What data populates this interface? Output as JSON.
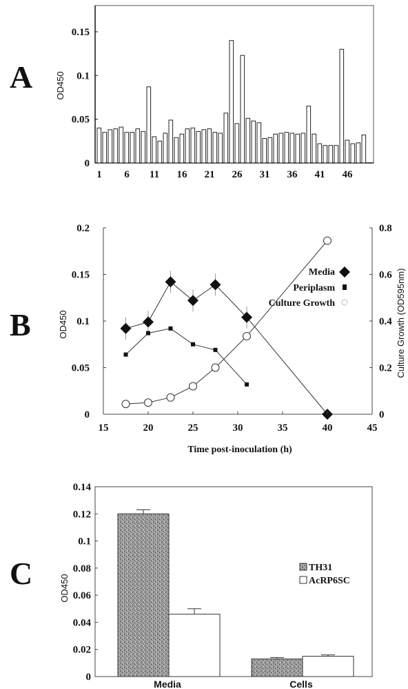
{
  "panels": {
    "A": "A",
    "B": "B",
    "C": "C"
  },
  "chart_data": [
    {
      "panel": "A",
      "type": "bar",
      "ylabel": "OD450",
      "xlabel": "",
      "ylim": [
        0,
        0.18
      ],
      "yticks": [
        "0",
        "0.05",
        "0.1",
        "0.15"
      ],
      "ytick_values": [
        0,
        0.05,
        0.1,
        0.15
      ],
      "xticks": [
        "1",
        "6",
        "11",
        "16",
        "21",
        "26",
        "31",
        "36",
        "41",
        "46"
      ],
      "categories": [
        1,
        2,
        3,
        4,
        5,
        6,
        7,
        8,
        9,
        10,
        11,
        12,
        13,
        14,
        15,
        16,
        17,
        18,
        19,
        20,
        21,
        22,
        23,
        24,
        25,
        26,
        27,
        28,
        29,
        30,
        31,
        32,
        33,
        34,
        35,
        36,
        37,
        38,
        39,
        40,
        41,
        42,
        43,
        44,
        45,
        46,
        47,
        48,
        49,
        50
      ],
      "values": [
        0.04,
        0.035,
        0.038,
        0.039,
        0.041,
        0.035,
        0.035,
        0.039,
        0.036,
        0.087,
        0.03,
        0.025,
        0.034,
        0.049,
        0.029,
        0.033,
        0.039,
        0.04,
        0.036,
        0.038,
        0.039,
        0.035,
        0.034,
        0.057,
        0.14,
        0.045,
        0.123,
        0.051,
        0.048,
        0.046,
        0.028,
        0.029,
        0.033,
        0.034,
        0.035,
        0.034,
        0.033,
        0.034,
        0.065,
        0.033,
        0.022,
        0.02,
        0.02,
        0.02,
        0.13,
        0.026,
        0.022,
        0.023,
        0.032,
        0.0
      ]
    },
    {
      "panel": "B",
      "type": "line",
      "xlabel": "Time post-inoculation (h)",
      "ylabel": "OD450",
      "y2label": "Culture Growth (OD595nm)",
      "xlim": [
        15,
        45
      ],
      "ylim": [
        0,
        0.2
      ],
      "y2lim": [
        0,
        0.8
      ],
      "xticks": [
        "15",
        "20",
        "25",
        "30",
        "35",
        "40",
        "45"
      ],
      "xtick_values": [
        15,
        20,
        25,
        30,
        35,
        40,
        45
      ],
      "yticks": [
        "0",
        "0.05",
        "0.1",
        "0.15",
        "0.2"
      ],
      "ytick_values": [
        0,
        0.05,
        0.1,
        0.15,
        0.2
      ],
      "y2ticks": [
        "0",
        "0.2",
        "0.4",
        "0.6",
        "0.8"
      ],
      "y2tick_values": [
        0,
        0.2,
        0.4,
        0.6,
        0.8
      ],
      "legend_position": "right",
      "series": [
        {
          "name": "Media",
          "axis": "left",
          "marker": "diamond",
          "x": [
            17.5,
            20,
            22.5,
            25,
            27.5,
            31,
            40
          ],
          "y": [
            0.092,
            0.099,
            0.142,
            0.122,
            0.139,
            0.104,
            0.0
          ]
        },
        {
          "name": "Periplasm",
          "axis": "left",
          "marker": "square",
          "x": [
            17.5,
            20,
            22.5,
            25,
            27.5,
            31
          ],
          "y": [
            0.064,
            0.087,
            0.092,
            0.075,
            0.069,
            0.032
          ]
        },
        {
          "name": "Culture Growth",
          "axis": "right",
          "marker": "circle",
          "x": [
            17.5,
            20,
            22.5,
            25,
            27.5,
            31,
            40
          ],
          "y": [
            0.044,
            0.05,
            0.072,
            0.12,
            0.2,
            0.335,
            0.745
          ]
        }
      ]
    },
    {
      "panel": "C",
      "type": "bar",
      "ylabel": "OD450",
      "xlabel": "",
      "ylim": [
        0,
        0.14
      ],
      "yticks": [
        "0",
        "0.02",
        "0.04",
        "0.06",
        "0.08",
        "0.1",
        "0.12",
        "0.14"
      ],
      "ytick_values": [
        0,
        0.02,
        0.04,
        0.06,
        0.08,
        0.1,
        0.12,
        0.14
      ],
      "categories": [
        "Media",
        "Cells"
      ],
      "legend_position": "right",
      "series": [
        {
          "name": "TH31",
          "values": [
            0.12,
            0.013
          ],
          "errors": [
            0.003,
            0.001
          ]
        },
        {
          "name": "AcRP6SC",
          "values": [
            0.046,
            0.015
          ],
          "errors": [
            0.004,
            0.001
          ]
        }
      ]
    }
  ],
  "colors": {
    "ink": "#111111",
    "grey_fill": "#8a8a8a",
    "white": "#ffffff"
  }
}
